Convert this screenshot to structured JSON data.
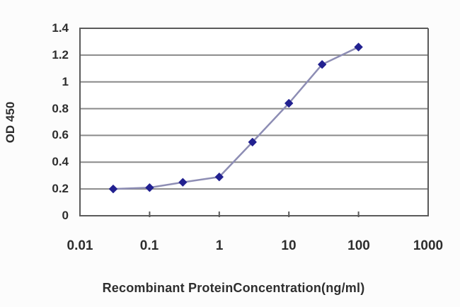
{
  "figure": {
    "background_color": "#fcfcfc",
    "plot_background_color": "#ffffff",
    "grid_color": "#8a8a8a",
    "axis_color": "#5a5a5a",
    "text_color": "#2e2e2e"
  },
  "chart_data": {
    "type": "line",
    "title": "",
    "xlabel": "Recombinant ProteinConcentration(ng/ml)",
    "ylabel": "OD 450",
    "x_scale": "log",
    "xlim": [
      0.01,
      1000
    ],
    "ylim": [
      0,
      1.4
    ],
    "x_ticks": [
      "0.01",
      "0.1",
      "1",
      "10",
      "100",
      "1000"
    ],
    "y_ticks": [
      "1.4",
      "1.2",
      "1",
      "0.8",
      "0.6",
      "0.4",
      "0.2",
      "0"
    ],
    "grid": "horizontal",
    "legend": "none",
    "series": [
      {
        "name": "OD 450",
        "x": [
          0.03,
          0.1,
          0.3,
          1,
          3,
          10,
          30,
          100
        ],
        "y": [
          0.2,
          0.21,
          0.25,
          0.29,
          0.55,
          0.84,
          1.13,
          1.26
        ],
        "line_color": "#8d8db4",
        "marker": "diamond",
        "marker_color": "#222190"
      }
    ]
  }
}
